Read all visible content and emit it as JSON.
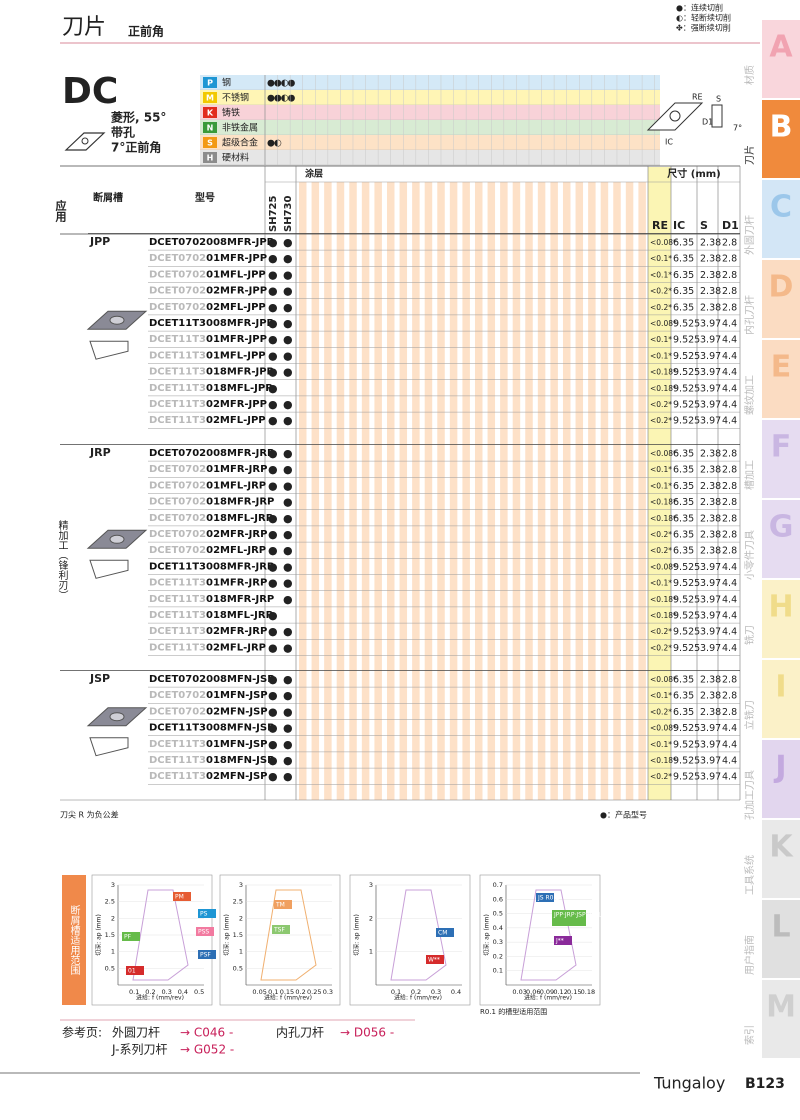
{
  "header": {
    "title": "刀片",
    "subtitle": "正前角",
    "legend": [
      "●：连续切削",
      "◐：轻断续切削",
      "✤：强断续切削"
    ]
  },
  "tabs": [
    {
      "letter": "A",
      "label": "材质"
    },
    {
      "letter": "B",
      "label": "刀片"
    },
    {
      "letter": "C",
      "label": "外圆刀杆"
    },
    {
      "letter": "D",
      "label": "内孔刀杆"
    },
    {
      "letter": "E",
      "label": "螺纹加工"
    },
    {
      "letter": "F",
      "label": "槽加工"
    },
    {
      "letter": "G",
      "label": "小零件刀具"
    },
    {
      "letter": "H",
      "label": "铣刀"
    },
    {
      "letter": "I",
      "label": "立铣刀"
    },
    {
      "letter": "J",
      "label": "孔加工刀具"
    },
    {
      "letter": "K",
      "label": "工具系统"
    },
    {
      "letter": "L",
      "label": "用户指南"
    },
    {
      "letter": "M",
      "label": "索引"
    }
  ],
  "insert": {
    "name": "DC",
    "desc": [
      "菱形, 55°",
      "带孔",
      "7°正前角"
    ],
    "diagram_labels": [
      "RE",
      "S",
      "IC",
      "D1",
      "7°"
    ]
  },
  "materials": [
    {
      "letter": "P",
      "name": "钢",
      "marks": "●●◐●"
    },
    {
      "letter": "M",
      "name": "不锈钢",
      "marks": "●●◐●"
    },
    {
      "letter": "K",
      "name": "铸铁",
      "marks": null
    },
    {
      "letter": "N",
      "name": "非铁金属",
      "marks": null
    },
    {
      "letter": "S",
      "name": "超级合金",
      "marks": "●◐"
    },
    {
      "letter": "H",
      "name": "硬材料",
      "marks": null
    }
  ],
  "table": {
    "headers": {
      "application": "应用",
      "chipbreaker": "断屑槽",
      "model": "型号",
      "coating": "涂层",
      "grades": [
        "SH725",
        "SH730"
      ],
      "dimensions": "尺寸 (mm)",
      "dims": [
        "RE",
        "IC",
        "S",
        "D1"
      ]
    },
    "application": "精加工（锋利刃）",
    "groups": [
      {
        "name": "JPP",
        "rows": [
          {
            "model": [
              "DCET0702008MFR-JPP"
            ],
            "grades": [
              "●",
              "●"
            ],
            "dims": [
              "<0.08*",
              "6.35",
              "2.38",
              "2.8"
            ]
          },
          {
            "model": [
              "DCET0702",
              "01MFR-JPP"
            ],
            "grades": [
              "●",
              "●"
            ],
            "dims": [
              "<0.1*",
              "6.35",
              "2.38",
              "2.8"
            ]
          },
          {
            "model": [
              "DCET0702",
              "01MFL-JPP"
            ],
            "grades": [
              "●",
              "●"
            ],
            "dims": [
              "<0.1*",
              "6.35",
              "2.38",
              "2.8"
            ]
          },
          {
            "model": [
              "DCET0702",
              "02MFR-JPP"
            ],
            "grades": [
              "●",
              "●"
            ],
            "dims": [
              "<0.2*",
              "6.35",
              "2.38",
              "2.8"
            ]
          },
          {
            "model": [
              "DCET0702",
              "02MFL-JPP"
            ],
            "grades": [
              "●",
              "●"
            ],
            "dims": [
              "<0.2*",
              "6.35",
              "2.38",
              "2.8"
            ]
          },
          {
            "model": [
              "DCET11T3008MFR-JPP"
            ],
            "grades": [
              "●",
              "●"
            ],
            "dims": [
              "<0.08*",
              "9.525",
              "3.97",
              "4.4"
            ]
          },
          {
            "model": [
              "DCET11T3",
              "01MFR-JPP"
            ],
            "grades": [
              "●",
              "●"
            ],
            "dims": [
              "<0.1*",
              "9.525",
              "3.97",
              "4.4"
            ]
          },
          {
            "model": [
              "DCET11T3",
              "01MFL-JPP"
            ],
            "grades": [
              "●",
              "●"
            ],
            "dims": [
              "<0.1*",
              "9.525",
              "3.97",
              "4.4"
            ]
          },
          {
            "model": [
              "DCET11T3",
              "018MFR-JPP"
            ],
            "grades": [
              "●",
              "●"
            ],
            "dims": [
              "<0.18*",
              "9.525",
              "3.97",
              "4.4"
            ]
          },
          {
            "model": [
              "DCET11T3",
              "018MFL-JPP"
            ],
            "grades": [
              "●",
              null
            ],
            "dims": [
              "<0.18*",
              "9.525",
              "3.97",
              "4.4"
            ]
          },
          {
            "model": [
              "DCET11T3",
              "02MFR-JPP"
            ],
            "grades": [
              "●",
              "●"
            ],
            "dims": [
              "<0.2*",
              "9.525",
              "3.97",
              "4.4"
            ]
          },
          {
            "model": [
              "DCET11T3",
              "02MFL-JPP"
            ],
            "grades": [
              "●",
              "●"
            ],
            "dims": [
              "<0.2*",
              "9.525",
              "3.97",
              "4.4"
            ]
          }
        ]
      },
      {
        "name": "JRP",
        "rows": [
          {
            "model": [
              "DCET0702008MFR-JRP"
            ],
            "grades": [
              "●",
              "●"
            ],
            "dims": [
              "<0.08*",
              "6.35",
              "2.38",
              "2.8"
            ]
          },
          {
            "model": [
              "DCET0702",
              "01MFR-JRP"
            ],
            "grades": [
              "●",
              "●"
            ],
            "dims": [
              "<0.1*",
              "6.35",
              "2.38",
              "2.8"
            ]
          },
          {
            "model": [
              "DCET0702",
              "01MFL-JRP"
            ],
            "grades": [
              "●",
              "●"
            ],
            "dims": [
              "<0.1*",
              "6.35",
              "2.38",
              "2.8"
            ]
          },
          {
            "model": [
              "DCET0702",
              "018MFR-JRP"
            ],
            "grades": [
              null,
              "●"
            ],
            "dims": [
              "<0.18*",
              "6.35",
              "2.38",
              "2.8"
            ]
          },
          {
            "model": [
              "DCET0702",
              "018MFL-JRP"
            ],
            "grades": [
              "●",
              "●"
            ],
            "dims": [
              "<0.18*",
              "6.35",
              "2.38",
              "2.8"
            ]
          },
          {
            "model": [
              "DCET0702",
              "02MFR-JRP"
            ],
            "grades": [
              "●",
              "●"
            ],
            "dims": [
              "<0.2*",
              "6.35",
              "2.38",
              "2.8"
            ]
          },
          {
            "model": [
              "DCET0702",
              "02MFL-JRP"
            ],
            "grades": [
              "●",
              "●"
            ],
            "dims": [
              "<0.2*",
              "6.35",
              "2.38",
              "2.8"
            ]
          },
          {
            "model": [
              "DCET11T3008MFR-JRP"
            ],
            "grades": [
              "●",
              "●"
            ],
            "dims": [
              "<0.08*",
              "9.525",
              "3.97",
              "4.4"
            ]
          },
          {
            "model": [
              "DCET11T3",
              "01MFR-JRP"
            ],
            "grades": [
              "●",
              "●"
            ],
            "dims": [
              "<0.1*",
              "9.525",
              "3.97",
              "4.4"
            ]
          },
          {
            "model": [
              "DCET11T3",
              "018MFR-JRP"
            ],
            "grades": [
              null,
              "●"
            ],
            "dims": [
              "<0.18*",
              "9.525",
              "3.97",
              "4.4"
            ]
          },
          {
            "model": [
              "DCET11T3",
              "018MFL-JRP"
            ],
            "grades": [
              "●",
              null
            ],
            "dims": [
              "<0.18*",
              "9.525",
              "3.97",
              "4.4"
            ]
          },
          {
            "model": [
              "DCET11T3",
              "02MFR-JRP"
            ],
            "grades": [
              "●",
              "●"
            ],
            "dims": [
              "<0.2*",
              "9.525",
              "3.97",
              "4.4"
            ]
          },
          {
            "model": [
              "DCET11T3",
              "02MFL-JRP"
            ],
            "grades": [
              "●",
              "●"
            ],
            "dims": [
              "<0.2*",
              "9.525",
              "3.97",
              "4.4"
            ]
          }
        ]
      },
      {
        "name": "JSP",
        "rows": [
          {
            "model": [
              "DCET0702008MFN-JSP"
            ],
            "grades": [
              "●",
              "●"
            ],
            "dims": [
              "<0.08*",
              "6.35",
              "2.38",
              "2.8"
            ]
          },
          {
            "model": [
              "DCET0702",
              "01MFN-JSP"
            ],
            "grades": [
              "●",
              "●"
            ],
            "dims": [
              "<0.1*",
              "6.35",
              "2.38",
              "2.8"
            ]
          },
          {
            "model": [
              "DCET0702",
              "02MFN-JSP"
            ],
            "grades": [
              "●",
              "●"
            ],
            "dims": [
              "<0.2*",
              "6.35",
              "2.38",
              "2.8"
            ]
          },
          {
            "model": [
              "DCET11T3008MFN-JSP"
            ],
            "grades": [
              "●",
              "●"
            ],
            "dims": [
              "<0.08*",
              "9.525",
              "3.97",
              "4.4"
            ]
          },
          {
            "model": [
              "DCET11T3",
              "01MFN-JSP"
            ],
            "grades": [
              "●",
              "●"
            ],
            "dims": [
              "<0.1*",
              "9.525",
              "3.97",
              "4.4"
            ]
          },
          {
            "model": [
              "DCET11T3",
              "018MFN-JSP"
            ],
            "grades": [
              "●",
              "●"
            ],
            "dims": [
              "<0.18*",
              "9.525",
              "3.97",
              "4.4"
            ]
          },
          {
            "model": [
              "DCET11T3",
              "02MFN-JSP"
            ],
            "grades": [
              "●",
              "●"
            ],
            "dims": [
              "<0.2*",
              "9.525",
              "3.97",
              "4.4"
            ]
          }
        ]
      }
    ]
  },
  "notes": {
    "left": "刀尖 R 为负公差",
    "right": "●：产品型号"
  },
  "charts": {
    "title": "断屑槽适用范围",
    "y_label": "切深: ap (mm)",
    "x_label": "进给: f (mm/rev)",
    "note": "R0.1 的槽型适用范围",
    "items": [
      {
        "xticks": [
          "0.1",
          "0.2",
          "0.3",
          "0.4",
          "0.5"
        ],
        "yticks": [
          "0.5",
          "1",
          "1.5",
          "2",
          "2.5",
          "3"
        ],
        "labels": [
          "PM",
          "PS",
          "PSS",
          "PSF",
          "PF",
          "01"
        ]
      },
      {
        "xticks": [
          "0.05",
          "0.1",
          "0.15",
          "0.2",
          "0.25",
          "0.3"
        ],
        "yticks": [
          "0.5",
          "1",
          "1.5",
          "2",
          "2.5",
          "3"
        ],
        "labels": [
          "TM",
          "TSF"
        ]
      },
      {
        "xticks": [
          "0.1",
          "0.2",
          "0.3",
          "0.4"
        ],
        "yticks": [
          "1",
          "2",
          "3"
        ],
        "labels": [
          "CM",
          "W**"
        ]
      },
      {
        "xticks": [
          "0.03",
          "0.06",
          "0.09",
          "0.12",
          "0.15",
          "0.18"
        ],
        "yticks": [
          "0.1",
          "0.2",
          "0.3",
          "0.4",
          "0.5",
          "0.6",
          "0.7"
        ],
        "labels": [
          "JS R0.1",
          "JPP·JRP·JSP R0.1",
          "J**"
        ]
      }
    ]
  },
  "references": {
    "label": "参考页:",
    "items": [
      {
        "name": "外圆刀杆",
        "page": "→ C046 -"
      },
      {
        "name": "内孔刀杆",
        "page": "→ D056 -"
      },
      {
        "name": "J-系列刀杆",
        "page": "→ G052 -"
      }
    ]
  },
  "footer": {
    "brand": "Tungaloy",
    "page": "B123"
  }
}
